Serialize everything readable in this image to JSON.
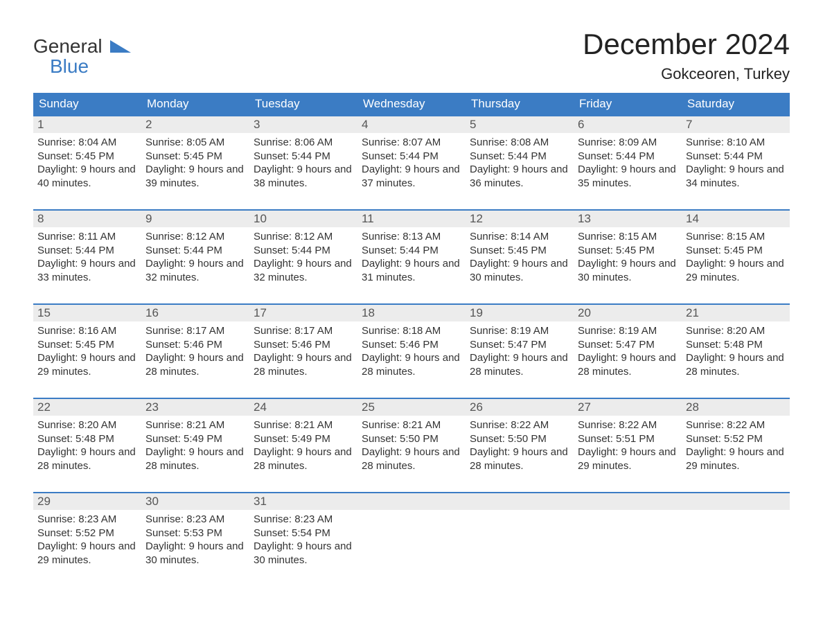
{
  "logo": {
    "line1": "General",
    "line2": "Blue",
    "accent_color": "#3b7cc4"
  },
  "title": "December 2024",
  "location": "Gokceoren, Turkey",
  "colors": {
    "header_bg": "#3b7cc4",
    "header_text": "#ffffff",
    "daynum_bg": "#ececec",
    "daynum_text": "#555555",
    "body_text": "#333333",
    "rule": "#3b7cc4",
    "page_bg": "#ffffff"
  },
  "typography": {
    "title_fontsize": 42,
    "subtitle_fontsize": 22,
    "weekday_fontsize": 17,
    "body_fontsize": 15
  },
  "weekdays": [
    "Sunday",
    "Monday",
    "Tuesday",
    "Wednesday",
    "Thursday",
    "Friday",
    "Saturday"
  ],
  "days": [
    {
      "num": "1",
      "sunrise": "8:04 AM",
      "sunset": "5:45 PM",
      "daylight": "9 hours and 40 minutes."
    },
    {
      "num": "2",
      "sunrise": "8:05 AM",
      "sunset": "5:45 PM",
      "daylight": "9 hours and 39 minutes."
    },
    {
      "num": "3",
      "sunrise": "8:06 AM",
      "sunset": "5:44 PM",
      "daylight": "9 hours and 38 minutes."
    },
    {
      "num": "4",
      "sunrise": "8:07 AM",
      "sunset": "5:44 PM",
      "daylight": "9 hours and 37 minutes."
    },
    {
      "num": "5",
      "sunrise": "8:08 AM",
      "sunset": "5:44 PM",
      "daylight": "9 hours and 36 minutes."
    },
    {
      "num": "6",
      "sunrise": "8:09 AM",
      "sunset": "5:44 PM",
      "daylight": "9 hours and 35 minutes."
    },
    {
      "num": "7",
      "sunrise": "8:10 AM",
      "sunset": "5:44 PM",
      "daylight": "9 hours and 34 minutes."
    },
    {
      "num": "8",
      "sunrise": "8:11 AM",
      "sunset": "5:44 PM",
      "daylight": "9 hours and 33 minutes."
    },
    {
      "num": "9",
      "sunrise": "8:12 AM",
      "sunset": "5:44 PM",
      "daylight": "9 hours and 32 minutes."
    },
    {
      "num": "10",
      "sunrise": "8:12 AM",
      "sunset": "5:44 PM",
      "daylight": "9 hours and 32 minutes."
    },
    {
      "num": "11",
      "sunrise": "8:13 AM",
      "sunset": "5:44 PM",
      "daylight": "9 hours and 31 minutes."
    },
    {
      "num": "12",
      "sunrise": "8:14 AM",
      "sunset": "5:45 PM",
      "daylight": "9 hours and 30 minutes."
    },
    {
      "num": "13",
      "sunrise": "8:15 AM",
      "sunset": "5:45 PM",
      "daylight": "9 hours and 30 minutes."
    },
    {
      "num": "14",
      "sunrise": "8:15 AM",
      "sunset": "5:45 PM",
      "daylight": "9 hours and 29 minutes."
    },
    {
      "num": "15",
      "sunrise": "8:16 AM",
      "sunset": "5:45 PM",
      "daylight": "9 hours and 29 minutes."
    },
    {
      "num": "16",
      "sunrise": "8:17 AM",
      "sunset": "5:46 PM",
      "daylight": "9 hours and 28 minutes."
    },
    {
      "num": "17",
      "sunrise": "8:17 AM",
      "sunset": "5:46 PM",
      "daylight": "9 hours and 28 minutes."
    },
    {
      "num": "18",
      "sunrise": "8:18 AM",
      "sunset": "5:46 PM",
      "daylight": "9 hours and 28 minutes."
    },
    {
      "num": "19",
      "sunrise": "8:19 AM",
      "sunset": "5:47 PM",
      "daylight": "9 hours and 28 minutes."
    },
    {
      "num": "20",
      "sunrise": "8:19 AM",
      "sunset": "5:47 PM",
      "daylight": "9 hours and 28 minutes."
    },
    {
      "num": "21",
      "sunrise": "8:20 AM",
      "sunset": "5:48 PM",
      "daylight": "9 hours and 28 minutes."
    },
    {
      "num": "22",
      "sunrise": "8:20 AM",
      "sunset": "5:48 PM",
      "daylight": "9 hours and 28 minutes."
    },
    {
      "num": "23",
      "sunrise": "8:21 AM",
      "sunset": "5:49 PM",
      "daylight": "9 hours and 28 minutes."
    },
    {
      "num": "24",
      "sunrise": "8:21 AM",
      "sunset": "5:49 PM",
      "daylight": "9 hours and 28 minutes."
    },
    {
      "num": "25",
      "sunrise": "8:21 AM",
      "sunset": "5:50 PM",
      "daylight": "9 hours and 28 minutes."
    },
    {
      "num": "26",
      "sunrise": "8:22 AM",
      "sunset": "5:50 PM",
      "daylight": "9 hours and 28 minutes."
    },
    {
      "num": "27",
      "sunrise": "8:22 AM",
      "sunset": "5:51 PM",
      "daylight": "9 hours and 29 minutes."
    },
    {
      "num": "28",
      "sunrise": "8:22 AM",
      "sunset": "5:52 PM",
      "daylight": "9 hours and 29 minutes."
    },
    {
      "num": "29",
      "sunrise": "8:23 AM",
      "sunset": "5:52 PM",
      "daylight": "9 hours and 29 minutes."
    },
    {
      "num": "30",
      "sunrise": "8:23 AM",
      "sunset": "5:53 PM",
      "daylight": "9 hours and 30 minutes."
    },
    {
      "num": "31",
      "sunrise": "8:23 AM",
      "sunset": "5:54 PM",
      "daylight": "9 hours and 30 minutes."
    }
  ],
  "labels": {
    "sunrise": "Sunrise:",
    "sunset": "Sunset:",
    "daylight": "Daylight:"
  },
  "layout": {
    "first_day_offset": 0,
    "trailing_blanks": 4
  }
}
